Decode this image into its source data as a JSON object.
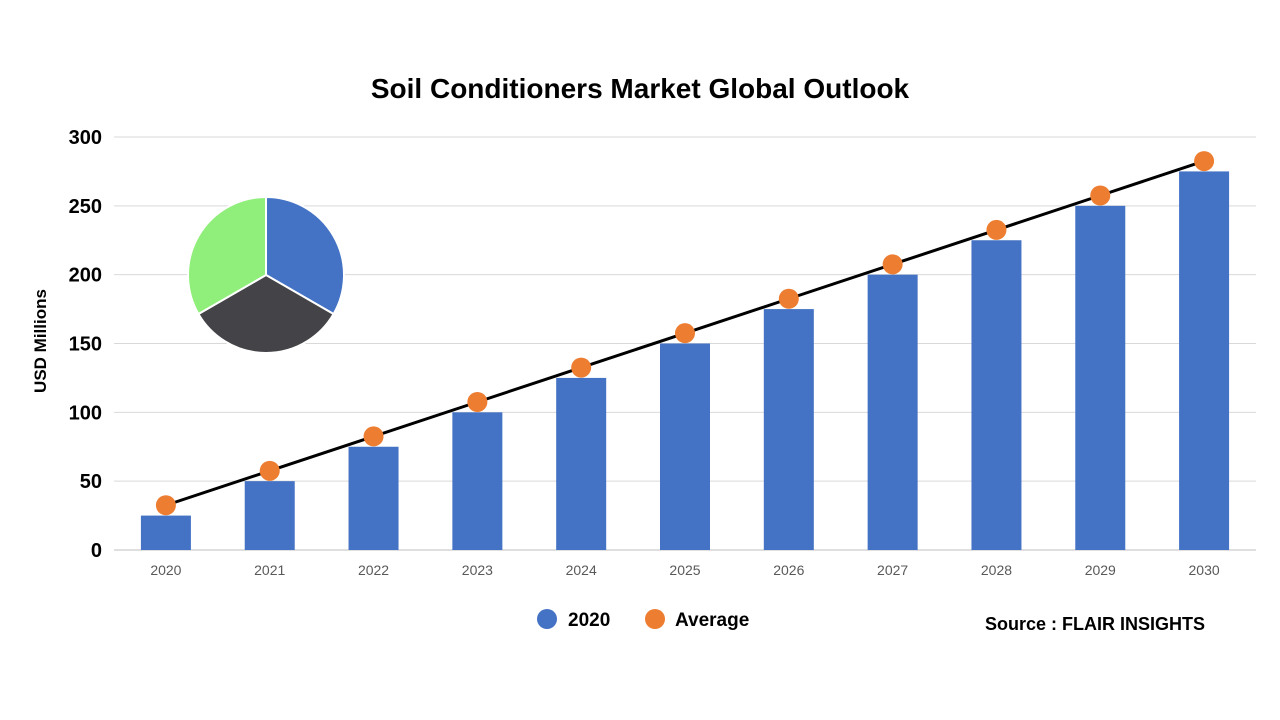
{
  "chart_data": {
    "type": "bar",
    "title": "Soil Conditioners Market Global Outlook",
    "ylabel": "USD Millions",
    "xlabel": "",
    "ylim": [
      0,
      300
    ],
    "yticks": [
      0,
      50,
      100,
      150,
      200,
      250,
      300
    ],
    "grid": true,
    "categories": [
      "2020",
      "2021",
      "2022",
      "2023",
      "2024",
      "2025",
      "2026",
      "2027",
      "2028",
      "2029",
      "2030"
    ],
    "series": [
      {
        "name": "2020",
        "type": "bar",
        "color": "#4472C4",
        "values": [
          25,
          50,
          75,
          100,
          125,
          150,
          175,
          200,
          225,
          250,
          275
        ]
      },
      {
        "name": "Average",
        "type": "line-markers",
        "color": "#ED7D31",
        "line_color": "#000000",
        "values": [
          32.5,
          57.5,
          82.5,
          107.5,
          132.5,
          157.5,
          182.5,
          207.5,
          232.5,
          257.5,
          282.5
        ]
      }
    ],
    "legend_position": "bottom-center",
    "decoration_pie": {
      "slices": [
        {
          "value": 1,
          "color": "#4472C4"
        },
        {
          "value": 1,
          "color": "#444448"
        },
        {
          "value": 1,
          "color": "#90EE7A"
        }
      ]
    }
  },
  "source": "Source : FLAIR INSIGHTS"
}
